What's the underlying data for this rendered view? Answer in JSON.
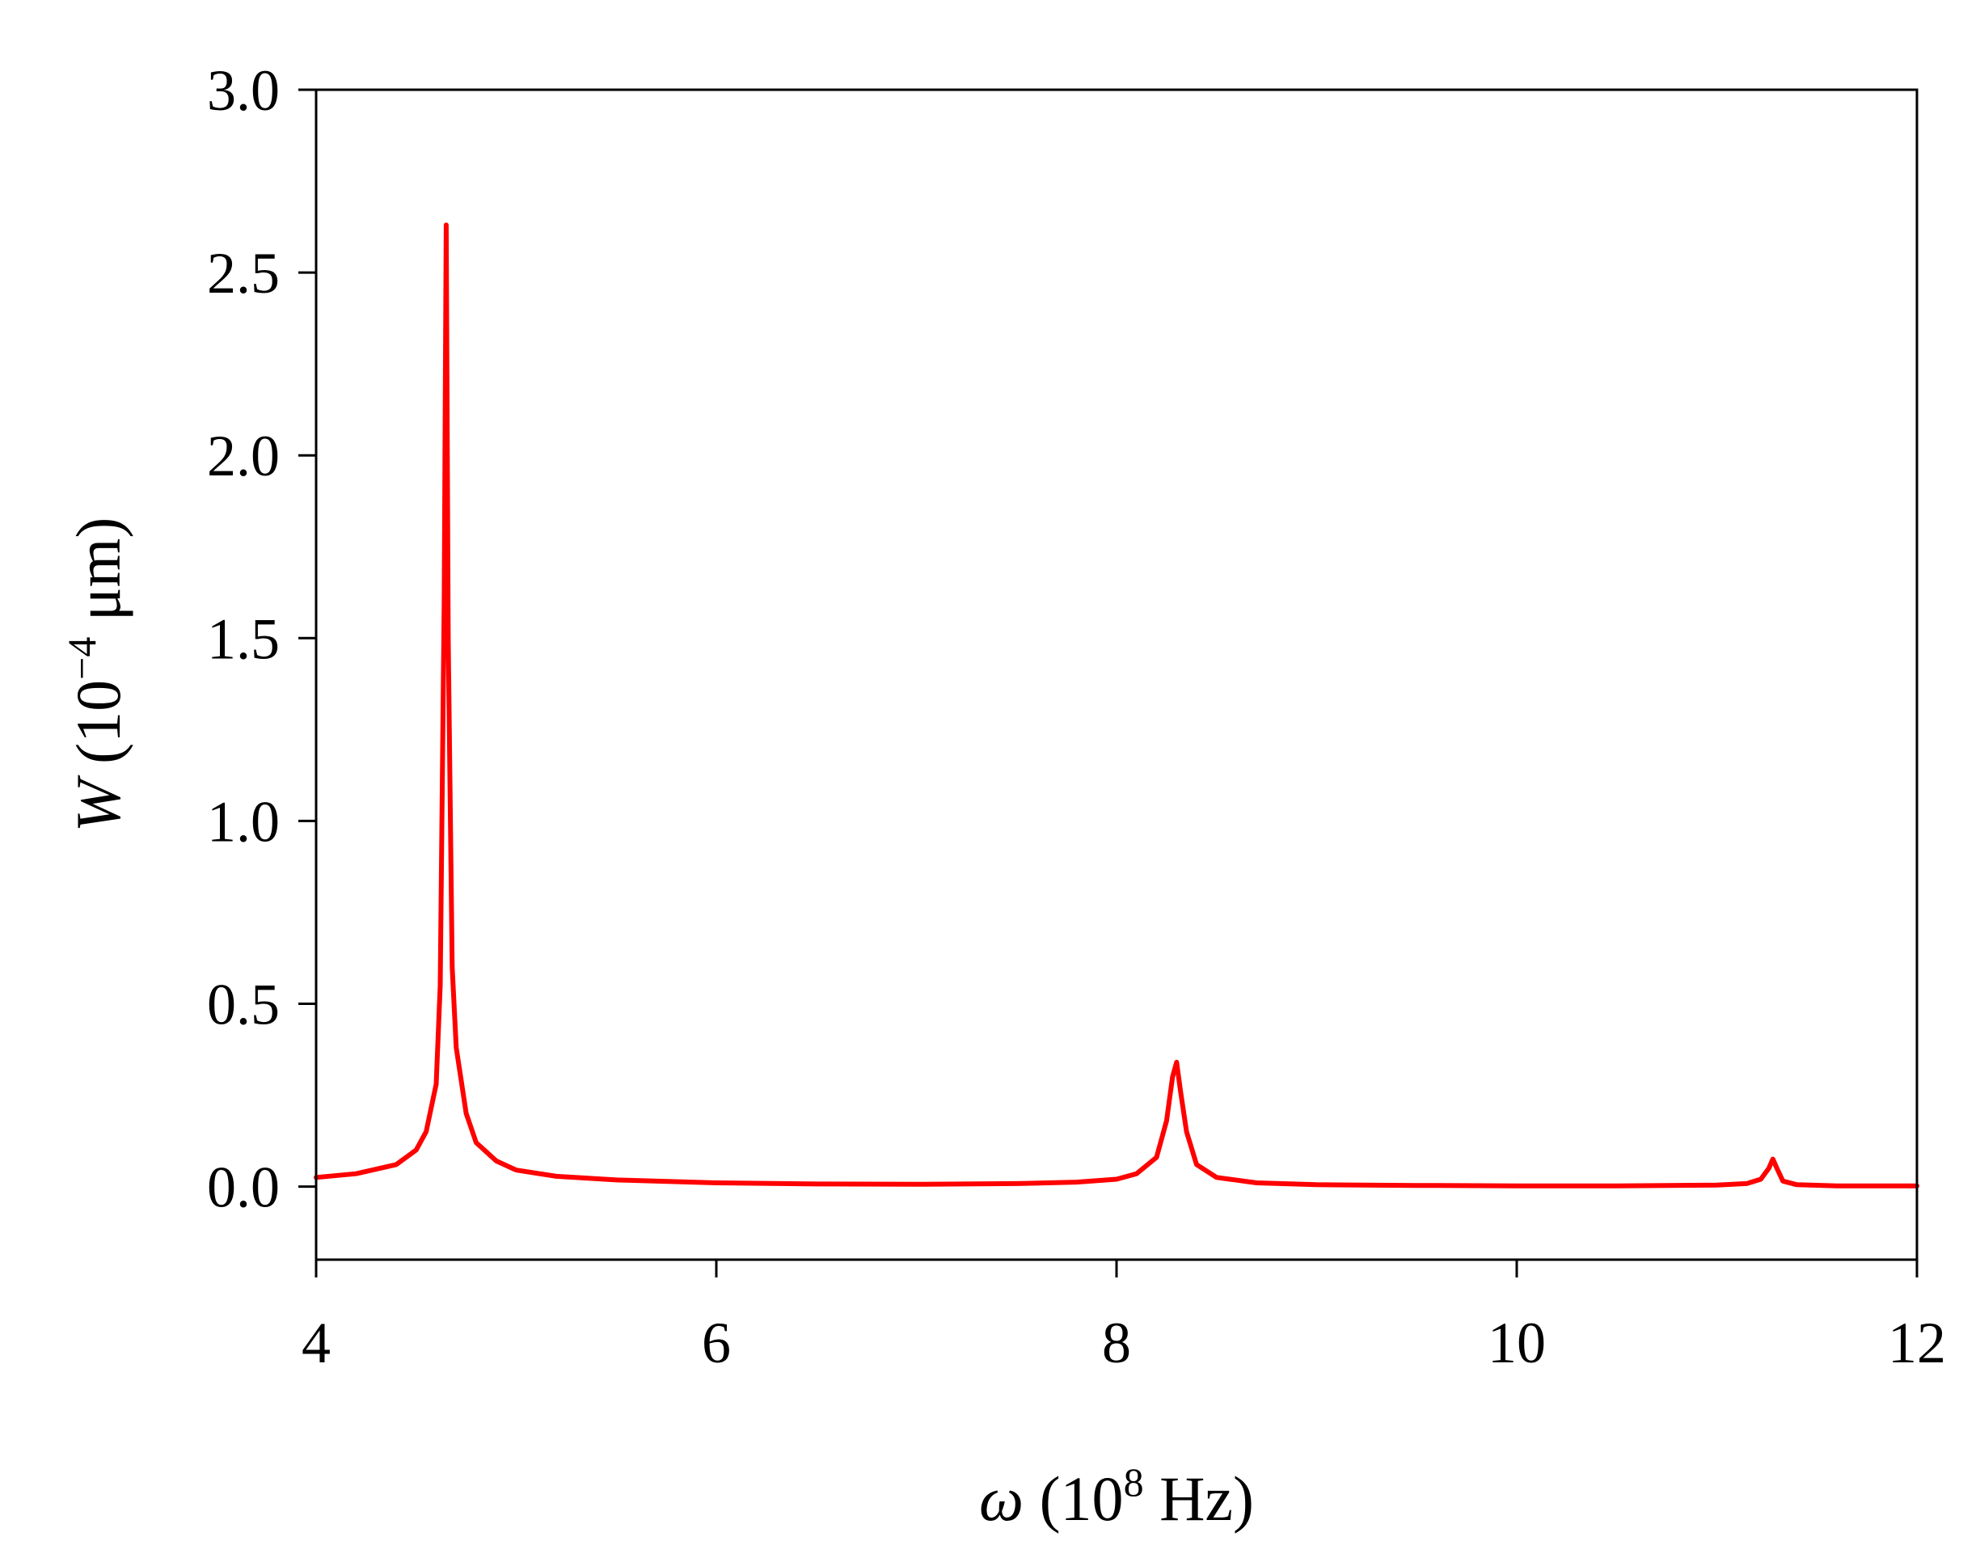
{
  "chart_data": {
    "type": "line",
    "title": "",
    "xlabel": {
      "symbol": "ω",
      "open": " (10",
      "sup": "8",
      "close": " Hz)"
    },
    "ylabel": {
      "symbol": "W",
      "open": " (10",
      "sup": "−4",
      "close": " μm)"
    },
    "xlim": [
      4,
      12
    ],
    "ylim": [
      -0.2,
      3.0
    ],
    "xticks": [
      4,
      6,
      8,
      10,
      12
    ],
    "xtick_labels": [
      "4",
      "6",
      "8",
      "10",
      "12"
    ],
    "yticks": [
      0.0,
      0.5,
      1.0,
      1.5,
      2.0,
      2.5,
      3.0
    ],
    "ytick_labels": [
      "0.0",
      "0.5",
      "1.0",
      "1.5",
      "2.0",
      "2.5",
      "3.0"
    ],
    "grid": false,
    "legend": false,
    "series": [
      {
        "color": "#ff0000",
        "x": [
          4.0,
          4.2,
          4.4,
          4.5,
          4.55,
          4.6,
          4.62,
          4.64,
          4.65,
          4.66,
          4.68,
          4.7,
          4.75,
          4.8,
          4.9,
          5.0,
          5.2,
          5.5,
          6.0,
          6.5,
          7.0,
          7.5,
          7.8,
          8.0,
          8.1,
          8.2,
          8.25,
          8.28,
          8.3,
          8.32,
          8.35,
          8.4,
          8.5,
          8.7,
          9.0,
          9.5,
          10.0,
          10.5,
          11.0,
          11.15,
          11.22,
          11.26,
          11.28,
          11.3,
          11.33,
          11.4,
          11.6,
          12.0
        ],
        "y": [
          0.025,
          0.035,
          0.06,
          0.1,
          0.15,
          0.28,
          0.55,
          1.6,
          2.63,
          1.5,
          0.6,
          0.38,
          0.2,
          0.12,
          0.07,
          0.045,
          0.028,
          0.018,
          0.01,
          0.007,
          0.006,
          0.008,
          0.012,
          0.02,
          0.035,
          0.08,
          0.18,
          0.3,
          0.34,
          0.26,
          0.15,
          0.06,
          0.025,
          0.01,
          0.005,
          0.003,
          0.002,
          0.002,
          0.004,
          0.008,
          0.02,
          0.05,
          0.075,
          0.05,
          0.015,
          0.005,
          0.002,
          0.002
        ]
      }
    ]
  }
}
